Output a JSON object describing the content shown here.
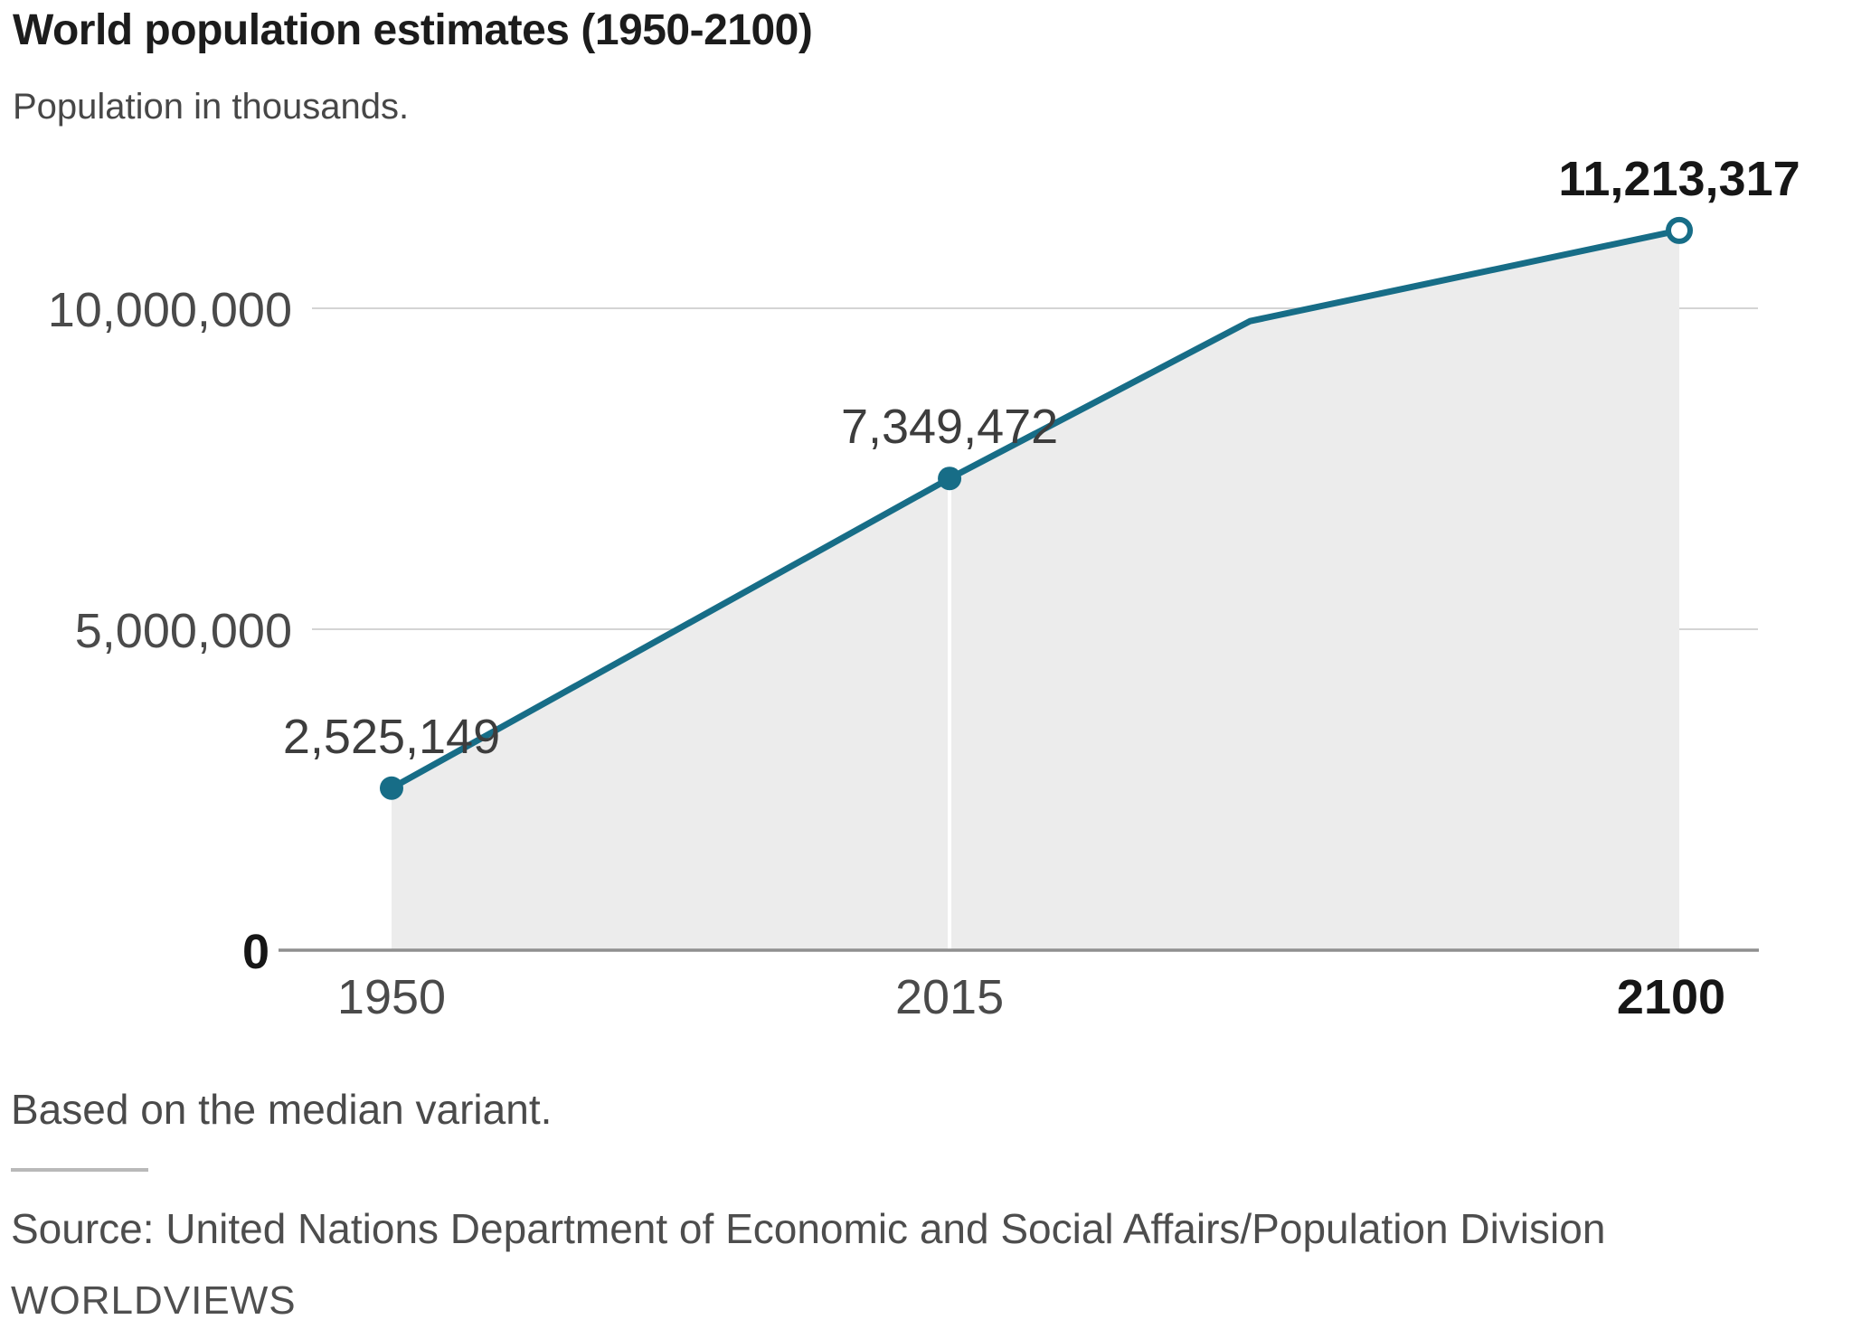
{
  "chart_data": {
    "type": "area",
    "title": "World population estimates (1950-2100)",
    "subtitle": "Population in thousands.",
    "x": [
      1950,
      2015,
      2100
    ],
    "values": [
      2525149,
      7349472,
      11213317
    ],
    "points": [
      {
        "year": 1950,
        "value": 2525149,
        "label": "2,525,149",
        "marker": "filled-dot",
        "label_bold": false
      },
      {
        "year": 2015,
        "value": 7349472,
        "label": "7,349,472",
        "marker": "filled-dot",
        "label_bold": false
      },
      {
        "year": 2100,
        "value": 11213317,
        "label": "11,213,317",
        "marker": "open-dot",
        "label_bold": true
      }
    ],
    "line_vertices": [
      {
        "year": 1950,
        "value": 2525149
      },
      {
        "year": 2015,
        "value": 7349472
      },
      {
        "year": 2050,
        "value": 9800000,
        "estimated_unlabeled_bend": true
      },
      {
        "year": 2100,
        "value": 11213317
      }
    ],
    "yticks": [
      {
        "value": 0,
        "label": "0",
        "bold": true
      },
      {
        "value": 5000000,
        "label": "5,000,000",
        "bold": false
      },
      {
        "value": 10000000,
        "label": "10,000,000",
        "bold": false
      }
    ],
    "xticks": [
      {
        "year": 1950,
        "label": "1950",
        "bold": false
      },
      {
        "year": 2015,
        "label": "2015",
        "bold": false
      },
      {
        "year": 2100,
        "label": "2100",
        "bold": true
      }
    ],
    "xlim": [
      1950,
      2100
    ],
    "ylim": [
      0,
      11800000
    ],
    "grid": "horizontal-only",
    "area_fill": "under-line",
    "separator_at_year": 2015,
    "legend": "none"
  },
  "footer": {
    "note": "Based on the median variant.",
    "source": "Source: United Nations Department of Economic and Social Affairs/Population Division",
    "brand": "WORLDVIEWS"
  },
  "colors": {
    "line": "#176d87",
    "area": "#ececec",
    "grid": "#d4d4d4",
    "axis": "#8f8f8f",
    "separator": "#ffffff",
    "marker_open_fill": "#ffffff",
    "text_dark": "#161616",
    "text_gray": "#4a4a4a"
  }
}
